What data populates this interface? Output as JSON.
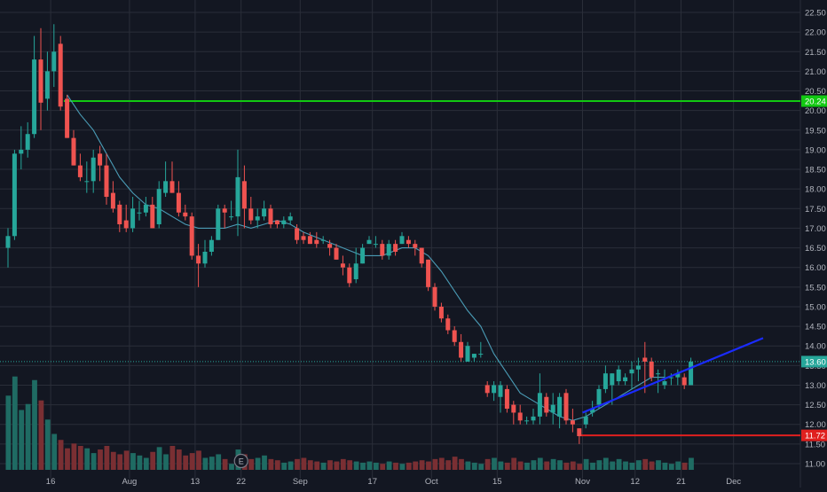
{
  "chart_data": {
    "type": "candlestick",
    "colors": {
      "background": "#131722",
      "grid": "#2a2e39",
      "axis_text": "#b2b5be",
      "up": "#26a69a",
      "down": "#ef5350",
      "up_volume": "#1f6b63",
      "down_volume": "#7a2f33",
      "ma_line": "#4a9bb5",
      "resistance_line": "#12c912",
      "support_line": "#e0201f",
      "trend_line": "#1a2bff",
      "last_price_line": "#26a69a"
    },
    "y_axis": {
      "min": 11.0,
      "max": 22.5,
      "ticks": [
        "22.50",
        "22.00",
        "21.50",
        "21.00",
        "20.50",
        "20.00",
        "19.50",
        "19.00",
        "18.50",
        "18.00",
        "17.50",
        "17.00",
        "16.50",
        "16.00",
        "15.50",
        "15.00",
        "14.50",
        "14.00",
        "13.50",
        "13.00",
        "12.50",
        "12.00",
        "11.50",
        "11.00"
      ]
    },
    "x_axis": {
      "labels": [
        {
          "text": "16",
          "bar": 6.5
        },
        {
          "text": "Aug",
          "bar": 18.5
        },
        {
          "text": "13",
          "bar": 28.5
        },
        {
          "text": "22",
          "bar": 35.5
        },
        {
          "text": "Sep",
          "bar": 44.5
        },
        {
          "text": "17",
          "bar": 55.5
        },
        {
          "text": "Oct",
          "bar": 64.5
        },
        {
          "text": "15",
          "bar": 74.5
        },
        {
          "text": "Nov",
          "bar": 87.5
        },
        {
          "text": "12",
          "bar": 95.5
        },
        {
          "text": "21",
          "bar": 102.5
        },
        {
          "text": "Dec",
          "bar": 110.5
        }
      ]
    },
    "candles": [
      [
        16.5,
        17.0,
        16.0,
        16.8,
        0.62
      ],
      [
        16.8,
        19.0,
        16.7,
        18.9,
        0.78
      ],
      [
        18.9,
        19.6,
        18.5,
        19.0,
        0.5
      ],
      [
        19.0,
        19.7,
        18.8,
        19.4,
        0.55
      ],
      [
        19.4,
        21.9,
        19.3,
        21.3,
        0.75
      ],
      [
        21.3,
        22.1,
        19.5,
        20.2,
        0.58
      ],
      [
        20.3,
        21.5,
        20.0,
        21.0,
        0.42
      ],
      [
        21.0,
        22.2,
        20.6,
        21.5,
        0.3
      ],
      [
        21.7,
        21.9,
        20.0,
        20.1,
        0.25
      ],
      [
        20.3,
        20.4,
        19.3,
        19.3,
        0.18
      ],
      [
        19.3,
        19.5,
        18.6,
        18.6,
        0.22
      ],
      [
        18.6,
        18.9,
        18.2,
        18.3,
        0.2
      ],
      [
        18.2,
        18.7,
        17.9,
        18.2,
        0.18
      ],
      [
        18.2,
        19.0,
        17.9,
        18.8,
        0.14
      ],
      [
        18.9,
        19.1,
        18.2,
        18.6,
        0.17
      ],
      [
        18.6,
        18.9,
        17.6,
        17.8,
        0.2
      ],
      [
        17.9,
        18.2,
        17.4,
        17.5,
        0.15
      ],
      [
        17.6,
        17.7,
        16.9,
        17.1,
        0.13
      ],
      [
        17.2,
        17.6,
        16.9,
        17.0,
        0.16
      ],
      [
        17.0,
        17.8,
        16.9,
        17.5,
        0.14
      ],
      [
        17.4,
        17.7,
        17.2,
        17.4,
        0.12
      ],
      [
        17.4,
        17.8,
        17.3,
        17.6,
        0.1
      ],
      [
        17.6,
        17.8,
        17.0,
        17.0,
        0.15
      ],
      [
        17.1,
        18.2,
        17.0,
        18.0,
        0.19
      ],
      [
        17.9,
        18.7,
        17.8,
        18.2,
        0.13
      ],
      [
        18.2,
        18.7,
        17.9,
        17.9,
        0.2
      ],
      [
        17.9,
        18.2,
        17.3,
        17.4,
        0.17
      ],
      [
        17.4,
        17.6,
        17.2,
        17.3,
        0.12
      ],
      [
        17.3,
        17.4,
        16.2,
        16.3,
        0.14
      ],
      [
        16.3,
        16.6,
        15.5,
        16.1,
        0.16
      ],
      [
        16.1,
        16.7,
        16.0,
        16.4,
        0.1
      ],
      [
        16.4,
        16.8,
        16.3,
        16.7,
        0.11
      ],
      [
        16.7,
        17.6,
        16.7,
        17.5,
        0.13
      ],
      [
        17.5,
        17.6,
        17.0,
        17.4,
        0.09
      ],
      [
        17.3,
        17.7,
        17.2,
        17.3,
        0.05
      ],
      [
        17.3,
        19.0,
        16.8,
        18.3,
        0.17
      ],
      [
        18.2,
        18.6,
        17.0,
        17.5,
        0.13
      ],
      [
        17.5,
        17.8,
        17.1,
        17.2,
        0.09
      ],
      [
        17.2,
        17.5,
        17.0,
        17.3,
        0.1
      ],
      [
        17.3,
        17.7,
        17.2,
        17.5,
        0.12
      ],
      [
        17.5,
        17.6,
        17.0,
        17.1,
        0.09
      ],
      [
        17.2,
        17.2,
        17.0,
        17.1,
        0.08
      ],
      [
        17.1,
        17.3,
        17.0,
        17.2,
        0.06
      ],
      [
        17.2,
        17.4,
        17.1,
        17.3,
        0.07
      ],
      [
        17.0,
        17.1,
        16.6,
        16.7,
        0.09
      ],
      [
        16.8,
        16.9,
        16.6,
        16.7,
        0.1
      ],
      [
        16.8,
        16.9,
        16.6,
        16.6,
        0.08
      ],
      [
        16.7,
        16.9,
        16.5,
        16.6,
        0.07
      ],
      [
        16.7,
        16.8,
        16.6,
        16.7,
        0.06
      ],
      [
        16.6,
        16.7,
        16.3,
        16.5,
        0.08
      ],
      [
        16.5,
        16.6,
        16.2,
        16.2,
        0.07
      ],
      [
        16.1,
        16.3,
        15.8,
        16.0,
        0.09
      ],
      [
        16.0,
        16.1,
        15.5,
        15.6,
        0.08
      ],
      [
        15.7,
        16.5,
        15.6,
        16.1,
        0.07
      ],
      [
        16.1,
        16.6,
        16.1,
        16.5,
        0.06
      ],
      [
        16.6,
        16.8,
        16.6,
        16.7,
        0.07
      ],
      [
        16.6,
        16.8,
        16.5,
        16.6,
        0.06
      ],
      [
        16.6,
        16.7,
        16.2,
        16.3,
        0.05
      ],
      [
        16.3,
        16.7,
        16.2,
        16.6,
        0.07
      ],
      [
        16.6,
        16.7,
        16.3,
        16.4,
        0.06
      ],
      [
        16.6,
        16.9,
        16.6,
        16.8,
        0.05
      ],
      [
        16.7,
        16.8,
        16.5,
        16.6,
        0.06
      ],
      [
        16.6,
        16.7,
        16.3,
        16.5,
        0.07
      ],
      [
        16.5,
        16.5,
        16.0,
        16.1,
        0.08
      ],
      [
        16.2,
        16.2,
        15.4,
        15.5,
        0.07
      ],
      [
        15.5,
        15.6,
        14.9,
        15.0,
        0.09
      ],
      [
        15.0,
        15.1,
        14.6,
        14.7,
        0.1
      ],
      [
        14.7,
        14.8,
        14.3,
        14.4,
        0.08
      ],
      [
        14.4,
        14.5,
        14.0,
        14.1,
        0.11
      ],
      [
        14.1,
        14.3,
        13.6,
        13.7,
        0.09
      ],
      [
        13.6,
        14.1,
        13.6,
        14.0,
        0.07
      ],
      [
        13.7,
        13.8,
        13.6,
        13.8,
        0.06
      ],
      [
        13.8,
        14.1,
        13.7,
        13.8,
        0.05
      ],
      [
        13.0,
        13.1,
        12.7,
        12.8,
        0.09
      ],
      [
        12.8,
        13.1,
        12.6,
        13.0,
        0.1
      ],
      [
        12.7,
        13.1,
        12.3,
        13.0,
        0.07
      ],
      [
        12.9,
        13.0,
        12.3,
        12.4,
        0.06
      ],
      [
        12.5,
        12.6,
        12.0,
        12.3,
        0.1
      ],
      [
        12.3,
        12.5,
        12.0,
        12.1,
        0.07
      ],
      [
        12.1,
        12.2,
        12.0,
        12.1,
        0.06
      ],
      [
        12.1,
        12.4,
        12.0,
        12.2,
        0.08
      ],
      [
        12.2,
        13.3,
        12.0,
        12.8,
        0.1
      ],
      [
        12.7,
        12.8,
        12.2,
        12.3,
        0.07
      ],
      [
        12.3,
        12.8,
        12.0,
        12.5,
        0.09
      ],
      [
        12.2,
        12.8,
        11.9,
        12.7,
        0.08
      ],
      [
        12.8,
        12.9,
        12.0,
        12.1,
        0.06
      ],
      [
        12.1,
        12.4,
        11.8,
        12.0,
        0.07
      ],
      [
        11.9,
        11.9,
        11.5,
        11.7,
        0.05
      ],
      [
        12.0,
        12.3,
        11.9,
        12.2,
        0.09
      ],
      [
        12.3,
        12.6,
        12.2,
        12.4,
        0.06
      ],
      [
        12.5,
        13.0,
        12.4,
        12.9,
        0.08
      ],
      [
        12.9,
        13.5,
        12.8,
        13.3,
        0.1
      ],
      [
        13.0,
        13.3,
        12.5,
        13.3,
        0.07
      ],
      [
        13.1,
        13.5,
        13.0,
        13.4,
        0.09
      ],
      [
        13.1,
        13.3,
        13.0,
        13.2,
        0.07
      ],
      [
        13.3,
        13.6,
        12.9,
        13.4,
        0.06
      ],
      [
        13.4,
        13.7,
        13.1,
        13.5,
        0.08
      ],
      [
        13.7,
        14.1,
        12.8,
        13.6,
        0.09
      ],
      [
        13.6,
        13.7,
        13.1,
        13.2,
        0.07
      ],
      [
        13.3,
        13.4,
        12.8,
        13.3,
        0.08
      ],
      [
        13.0,
        13.4,
        12.9,
        13.1,
        0.06
      ],
      [
        13.2,
        13.3,
        13.0,
        13.2,
        0.05
      ],
      [
        13.2,
        13.4,
        13.0,
        13.3,
        0.07
      ],
      [
        13.2,
        13.3,
        12.9,
        13.0,
        0.06
      ],
      [
        13.0,
        13.7,
        13.0,
        13.6,
        0.1
      ]
    ],
    "moving_average": [
      [
        9,
        20.4
      ],
      [
        11,
        19.9
      ],
      [
        13,
        19.5
      ],
      [
        15,
        18.9
      ],
      [
        17,
        18.3
      ],
      [
        19,
        17.9
      ],
      [
        21,
        17.6
      ],
      [
        23,
        17.5
      ],
      [
        25,
        17.3
      ],
      [
        27,
        17.1
      ],
      [
        29,
        17.0
      ],
      [
        31,
        17.0
      ],
      [
        33,
        17.0
      ],
      [
        35,
        17.1
      ],
      [
        37,
        17.0
      ],
      [
        39,
        17.1
      ],
      [
        41,
        17.2
      ],
      [
        43,
        17.1
      ],
      [
        45,
        16.9
      ],
      [
        48,
        16.7
      ],
      [
        51,
        16.5
      ],
      [
        54,
        16.3
      ],
      [
        57,
        16.3
      ],
      [
        60,
        16.5
      ],
      [
        62,
        16.5
      ],
      [
        64,
        16.3
      ],
      [
        66,
        15.9
      ],
      [
        68,
        15.4
      ],
      [
        70,
        14.9
      ],
      [
        72,
        14.5
      ],
      [
        74,
        13.8
      ],
      [
        76,
        13.3
      ],
      [
        78,
        12.8
      ],
      [
        80,
        12.6
      ],
      [
        82,
        12.4
      ],
      [
        84,
        12.2
      ],
      [
        86,
        12.1
      ],
      [
        88,
        12.2
      ],
      [
        90,
        12.4
      ],
      [
        92,
        12.6
      ],
      [
        94,
        12.8
      ],
      [
        96,
        13.0
      ],
      [
        98,
        13.2
      ],
      [
        100,
        13.2
      ]
    ],
    "horizontal_lines": [
      {
        "name": "resistance",
        "price": 20.24,
        "from_bar": 8.5,
        "label": "20.24"
      },
      {
        "name": "support",
        "price": 11.72,
        "from_bar": 87.0,
        "label": "11.72"
      }
    ],
    "trend_line": {
      "from": [
        87.5,
        12.3
      ],
      "to": [
        115.0,
        14.2
      ]
    },
    "last_price": {
      "price": 13.6,
      "label": "13.60"
    },
    "earnings_marker": {
      "bar": 35.5,
      "label": "E"
    }
  }
}
